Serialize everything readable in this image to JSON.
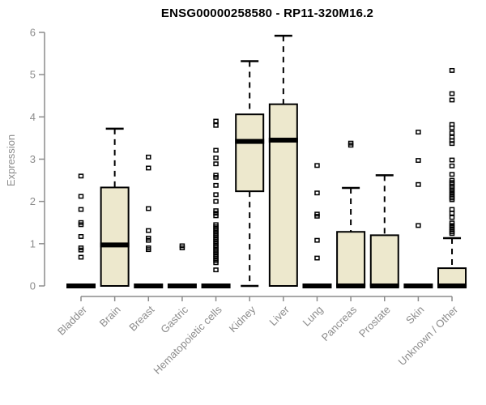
{
  "chart_data": {
    "type": "boxplot",
    "title": "ENSG00000258580 - RP11-320M16.2",
    "ylabel": "Expression",
    "xlabel": "",
    "ylim": [
      0,
      6
    ],
    "yticks": [
      0,
      1,
      2,
      3,
      4,
      5,
      6
    ],
    "grid": false,
    "legend": "none",
    "colors": {
      "box_fill": "#EDE8CD",
      "box_stroke": "#000000",
      "median": "#000000",
      "axis": "#8c8c8c",
      "tick_label": "#8c8c8c",
      "title": "#000000"
    },
    "categories": [
      "Bladder",
      "Brain",
      "Breast",
      "Gastric",
      "Hematopoietic cells",
      "Kidney",
      "Liver",
      "Lung",
      "Pancreas",
      "Prostate",
      "Skin",
      "Unknown / Other"
    ],
    "series": [
      {
        "category": "Bladder",
        "whisker_low": 0,
        "q1": 0,
        "median": 0,
        "q3": 0,
        "whisker_high": 0,
        "outliers": [
          0.68,
          0.85,
          0.9,
          1.17,
          1.45,
          1.5,
          1.81,
          2.12,
          2.6
        ]
      },
      {
        "category": "Brain",
        "whisker_low": 0,
        "q1": 0,
        "median": 0.97,
        "q3": 2.33,
        "whisker_high": 3.72,
        "outliers": []
      },
      {
        "category": "Breast",
        "whisker_low": 0,
        "q1": 0,
        "median": 0,
        "q3": 0,
        "whisker_high": 0,
        "outliers": [
          0.86,
          0.9,
          1.08,
          1.13,
          1.31,
          1.83,
          2.79,
          3.05
        ]
      },
      {
        "category": "Gastric",
        "whisker_low": 0,
        "q1": 0,
        "median": 0,
        "q3": 0,
        "whisker_high": 0,
        "outliers": [
          0.9,
          0.95
        ]
      },
      {
        "category": "Hematopoietic cells",
        "whisker_low": 0,
        "q1": 0,
        "median": 0,
        "q3": 0,
        "whisker_high": 0,
        "outliers": [
          0.38,
          0.55,
          0.6,
          0.65,
          0.7,
          0.75,
          0.8,
          0.85,
          0.9,
          0.95,
          1.0,
          1.05,
          1.1,
          1.15,
          1.2,
          1.25,
          1.3,
          1.35,
          1.4,
          1.45,
          1.66,
          1.72,
          1.78,
          2.0,
          2.16,
          2.38,
          2.57,
          2.62,
          2.89,
          3.03,
          3.21,
          3.8,
          3.9
        ]
      },
      {
        "category": "Kidney",
        "whisker_low": 0,
        "q1": 2.24,
        "median": 3.42,
        "q3": 4.06,
        "whisker_high": 5.32,
        "outliers": []
      },
      {
        "category": "Liver",
        "whisker_low": 0,
        "q1": 0,
        "median": 3.45,
        "q3": 4.3,
        "whisker_high": 5.92,
        "outliers": []
      },
      {
        "category": "Lung",
        "whisker_low": 0,
        "q1": 0,
        "median": 0,
        "q3": 0,
        "whisker_high": 0,
        "outliers": [
          0.66,
          1.08,
          1.65,
          1.7,
          2.2,
          2.85
        ]
      },
      {
        "category": "Pancreas",
        "whisker_low": 0,
        "q1": 0,
        "median": 0,
        "q3": 1.28,
        "whisker_high": 2.32,
        "outliers": [
          3.33,
          3.38
        ]
      },
      {
        "category": "Prostate",
        "whisker_low": 0,
        "q1": 0,
        "median": 0,
        "q3": 1.2,
        "whisker_high": 2.62,
        "outliers": []
      },
      {
        "category": "Skin",
        "whisker_low": 0,
        "q1": 0,
        "median": 0,
        "q3": 0,
        "whisker_high": 0,
        "outliers": [
          1.43,
          2.4,
          2.97,
          3.64
        ]
      },
      {
        "category": "Unknown / Other",
        "whisker_low": 0,
        "q1": 0,
        "median": 0,
        "q3": 0.42,
        "whisker_high": 1.13,
        "outliers": [
          1.24,
          1.28,
          1.33,
          1.38,
          1.43,
          1.49,
          1.62,
          1.72,
          1.81,
          2.04,
          2.08,
          2.12,
          2.17,
          2.22,
          2.27,
          2.32,
          2.36,
          2.41,
          2.45,
          2.5,
          2.64,
          2.84,
          2.98,
          3.37,
          3.44,
          3.52,
          3.62,
          3.74,
          3.82,
          4.4,
          4.55,
          5.1
        ]
      }
    ]
  }
}
